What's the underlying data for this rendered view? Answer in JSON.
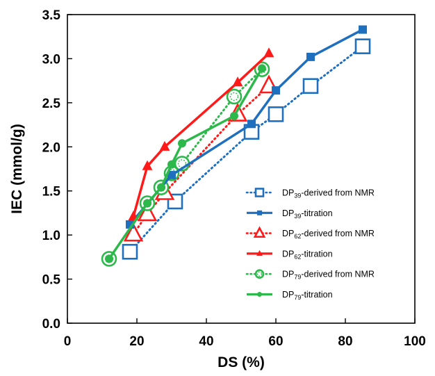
{
  "chart_data": {
    "type": "line",
    "title": "",
    "xlabel": "DS (%)",
    "ylabel": "IEC (mmol/g)",
    "xlim": [
      0,
      100
    ],
    "ylim": [
      0.0,
      3.5
    ],
    "x_ticks": [
      "0",
      "20",
      "40",
      "60",
      "80",
      "100"
    ],
    "y_ticks": [
      "0.0",
      "0.5",
      "1.0",
      "1.5",
      "2.0",
      "2.5",
      "3.0",
      "3.5"
    ],
    "grid": false,
    "legend_position": "bottom-right",
    "series": [
      {
        "name": "DP39-derived from NMR",
        "legend_main": "DP",
        "legend_sub": "39",
        "legend_rest": "-derived from NMR",
        "color": "#1F6FBF",
        "line": "dotted",
        "marker": "open-square",
        "x": [
          18,
          31,
          53,
          60,
          70,
          85
        ],
        "y": [
          0.81,
          1.38,
          2.17,
          2.37,
          2.69,
          3.14
        ]
      },
      {
        "name": "DP39-titration",
        "legend_main": "DP",
        "legend_sub": "39",
        "legend_rest": "-titration",
        "color": "#1F6FBF",
        "line": "solid",
        "marker": "filled-square",
        "x": [
          18,
          30,
          53,
          60,
          70,
          85
        ],
        "y": [
          1.12,
          1.68,
          2.26,
          2.64,
          3.02,
          3.33
        ]
      },
      {
        "name": "DP62-derived from NMR",
        "legend_main": "DP",
        "legend_sub": "62",
        "legend_rest": "-derived from NMR",
        "color": "#FF1A1A",
        "line": "dotted",
        "marker": "open-triangle",
        "x": [
          19,
          23,
          28,
          49,
          58
        ],
        "y": [
          1.01,
          1.24,
          1.48,
          2.37,
          2.69
        ]
      },
      {
        "name": "DP62-titration",
        "legend_main": "DP",
        "legend_sub": "62",
        "legend_rest": "-titration",
        "color": "#FF1A1A",
        "line": "solid",
        "marker": "filled-triangle",
        "x": [
          19,
          23,
          28,
          49,
          58
        ],
        "y": [
          1.21,
          1.78,
          2.0,
          2.73,
          3.06
        ]
      },
      {
        "name": "DP79-derived from NMR",
        "legend_main": "DP",
        "legend_sub": "79",
        "legend_rest": "-derived from NMR",
        "color": "#2DB84B",
        "line": "dotted",
        "marker": "open-circle",
        "x": [
          12,
          23,
          27,
          30,
          33,
          48,
          56
        ],
        "y": [
          0.73,
          1.36,
          1.54,
          1.7,
          1.81,
          2.57,
          2.88
        ]
      },
      {
        "name": "DP79-titration",
        "legend_main": "DP",
        "legend_sub": "79",
        "legend_rest": "-titration",
        "color": "#2DB84B",
        "line": "solid",
        "marker": "filled-circle",
        "x": [
          12,
          23,
          27,
          30,
          33,
          48,
          56
        ],
        "y": [
          0.73,
          1.36,
          1.54,
          1.8,
          2.04,
          2.35,
          2.89
        ]
      }
    ]
  }
}
